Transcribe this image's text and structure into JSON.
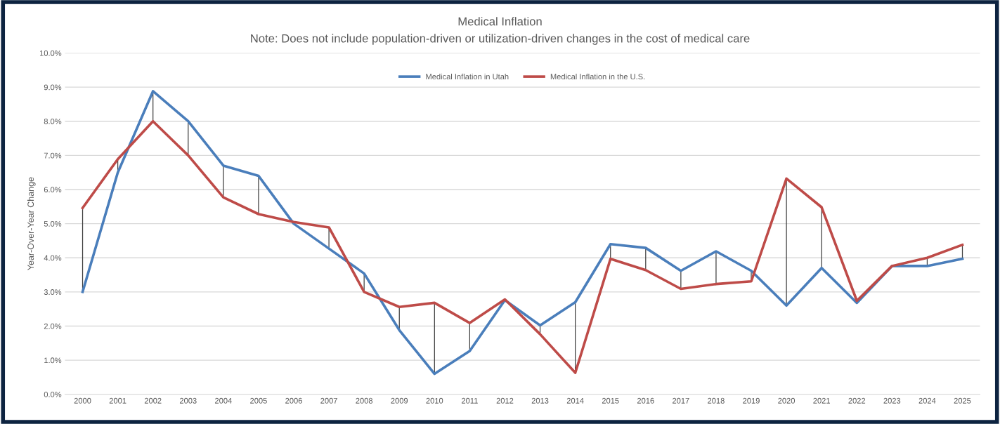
{
  "chart_data": {
    "type": "line",
    "title": "Medical Inflation",
    "subtitle": "Note: Does not include population-driven or utilization-driven changes in the cost of medical care",
    "ylabel": "Year-Over-Year Change",
    "categories": [
      "2000",
      "2001",
      "2002",
      "2003",
      "2004",
      "2005",
      "2006",
      "2007",
      "2008",
      "2009",
      "2010",
      "2011",
      "2012",
      "2013",
      "2014",
      "2015",
      "2016",
      "2017",
      "2018",
      "2019",
      "2020",
      "2021",
      "2022",
      "2023",
      "2024",
      "2025"
    ],
    "series": [
      {
        "name": "Medical Inflation in Utah",
        "color": "#4a7ebb",
        "values": [
          3.0,
          6.5,
          8.88,
          8.0,
          6.7,
          6.4,
          5.0,
          4.27,
          3.54,
          1.88,
          0.6,
          1.27,
          2.76,
          2.02,
          2.7,
          4.4,
          4.29,
          3.62,
          4.19,
          3.62,
          2.6,
          3.7,
          2.68,
          3.76,
          3.76,
          3.97
        ]
      },
      {
        "name": "Medical Inflation in the U.S.",
        "color": "#be4b48",
        "values": [
          5.46,
          6.89,
          8.0,
          7.0,
          5.77,
          5.28,
          5.05,
          4.89,
          3.0,
          2.56,
          2.68,
          2.09,
          2.78,
          1.76,
          0.63,
          3.97,
          3.64,
          3.09,
          3.23,
          3.31,
          6.32,
          5.48,
          2.74,
          3.76,
          4.0,
          4.38
        ]
      }
    ],
    "ylim": [
      0,
      10
    ],
    "yticks": [
      {
        "value": 0,
        "label": "0.0%"
      },
      {
        "value": 1,
        "label": "1.0%"
      },
      {
        "value": 2,
        "label": "2.0%"
      },
      {
        "value": 3,
        "label": "3.0%"
      },
      {
        "value": 4,
        "label": "4.0%"
      },
      {
        "value": 5,
        "label": "5.0%"
      },
      {
        "value": 6,
        "label": "6.0%"
      },
      {
        "value": 7,
        "label": "7.0%"
      },
      {
        "value": 8,
        "label": "8.0%"
      },
      {
        "value": 9,
        "label": "9.0%"
      },
      {
        "value": 10,
        "label": "10.0%"
      }
    ],
    "grid": "y",
    "legend": "top",
    "marker": "none",
    "line_style": "solid"
  }
}
